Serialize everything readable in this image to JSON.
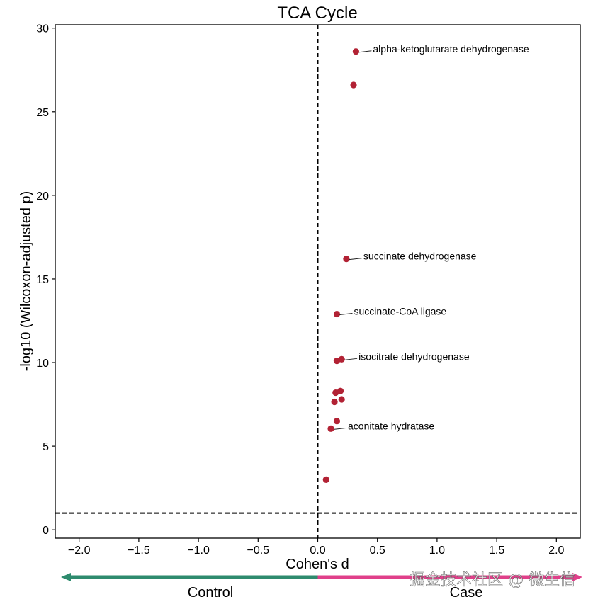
{
  "chart_data": {
    "type": "scatter",
    "title": "TCA Cycle",
    "xlabel": "Cohen's d",
    "ylabel": "-log10 (Wilcoxon-adjusted p)",
    "xlim": [
      -2.2,
      2.2
    ],
    "ylim": [
      -0.5,
      30.2
    ],
    "xticks": [
      -2.0,
      -1.5,
      -1.0,
      -0.5,
      0.0,
      0.5,
      1.0,
      1.5,
      2.0
    ],
    "xtick_labels": [
      "−2.0",
      "−1.5",
      "−1.0",
      "−0.5",
      "0.0",
      "0.5",
      "1.0",
      "1.5",
      "2.0"
    ],
    "yticks": [
      0,
      5,
      10,
      15,
      20,
      25,
      30
    ],
    "ytick_labels": [
      "0",
      "5",
      "10",
      "15",
      "20",
      "25",
      "30"
    ],
    "grid": false,
    "point_color": "#b22234",
    "reference_lines": [
      {
        "orientation": "vertical",
        "value": 0,
        "style": "dashed"
      },
      {
        "orientation": "horizontal",
        "value": 1.0,
        "style": "dashed"
      }
    ],
    "points": [
      {
        "x": 0.32,
        "y": 28.6,
        "label": "alpha-ketoglutarate dehydrogenase"
      },
      {
        "x": 0.3,
        "y": 26.6,
        "label": ""
      },
      {
        "x": 0.24,
        "y": 16.2,
        "label": "succinate dehydrogenase"
      },
      {
        "x": 0.16,
        "y": 12.9,
        "label": "succinate-CoA ligase"
      },
      {
        "x": 0.2,
        "y": 10.2,
        "label": "isocitrate dehydrogenase"
      },
      {
        "x": 0.16,
        "y": 10.1,
        "label": ""
      },
      {
        "x": 0.19,
        "y": 8.3,
        "label": ""
      },
      {
        "x": 0.15,
        "y": 8.2,
        "label": ""
      },
      {
        "x": 0.2,
        "y": 7.8,
        "label": ""
      },
      {
        "x": 0.14,
        "y": 7.65,
        "label": ""
      },
      {
        "x": 0.16,
        "y": 6.5,
        "label": ""
      },
      {
        "x": 0.11,
        "y": 6.05,
        "label": "aconitate hydratase"
      },
      {
        "x": 0.07,
        "y": 3.0,
        "label": ""
      }
    ],
    "direction_arrows": [
      {
        "label": "Control",
        "direction": "left",
        "color": "#2e8b6e"
      },
      {
        "label": "Case",
        "direction": "right",
        "color": "#e0408a"
      }
    ]
  },
  "watermark": "掘金技术社区 @ 微生信"
}
